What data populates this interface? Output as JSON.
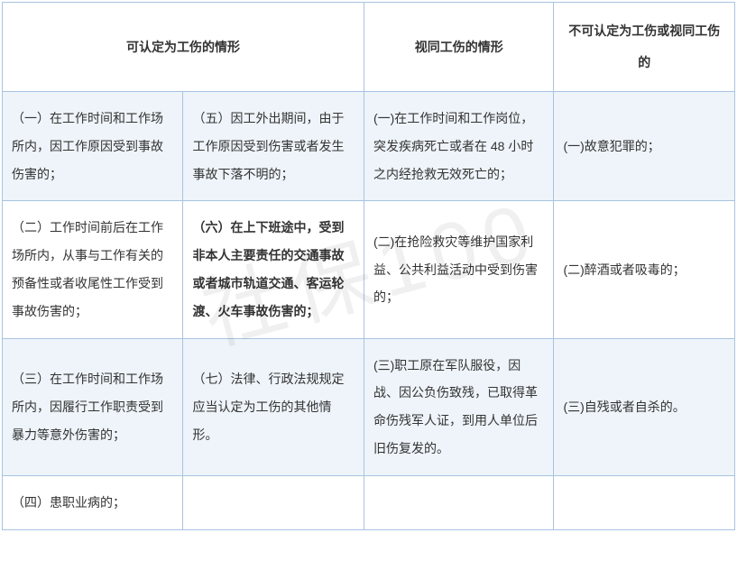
{
  "watermark": "社保100",
  "table": {
    "header": {
      "col_a": "可认定为工伤的情形",
      "col_b": "视同工伤的情形",
      "col_c": "不可认定为工伤或视同工伤的"
    },
    "rows": [
      {
        "c1": "（一）在工作时间和工作场所内，因工作原因受到事故伤害的；",
        "c2": "（五）因工外出期间，由于工作原因受到伤害或者发生事故下落不明的；",
        "c3": "(一)在工作时间和工作岗位，突发疾病死亡或者在 48 小时之内经抢救无效死亡的；",
        "c4": "(一)故意犯罪的；"
      },
      {
        "c1": "（二）工作时间前后在工作场所内，从事与工作有关的预备性或者收尾性工作受到事故伤害的；",
        "c2": "（六）在上下班途中，受到非本人主要责任的交通事故或者城市轨道交通、客运轮渡、火车事故伤害的；",
        "c2_bold": true,
        "c3": "(二)在抢险救灾等维护国家利益、公共利益活动中受到伤害的；",
        "c4": "(二)醉酒或者吸毒的；"
      },
      {
        "c1": "（三）在工作时间和工作场所内，因履行工作职责受到暴力等意外伤害的；",
        "c2": "（七）法律、行政法规规定应当认定为工伤的其他情形。",
        "c3": "(三)职工原在军队服役，因战、因公负伤致残，已取得革命伤残军人证，到用人单位后旧伤复发的。",
        "c4": "(三)自残或者自杀的。"
      },
      {
        "c1": "（四）患职业病的；",
        "c2": "",
        "c3": "",
        "c4": ""
      }
    ],
    "colors": {
      "border": "#a7c4e2",
      "row_odd_bg": "#eef4fa",
      "row_even_bg": "#ffffff",
      "text": "#333333"
    },
    "font_size": 14,
    "line_height": 2.2
  }
}
